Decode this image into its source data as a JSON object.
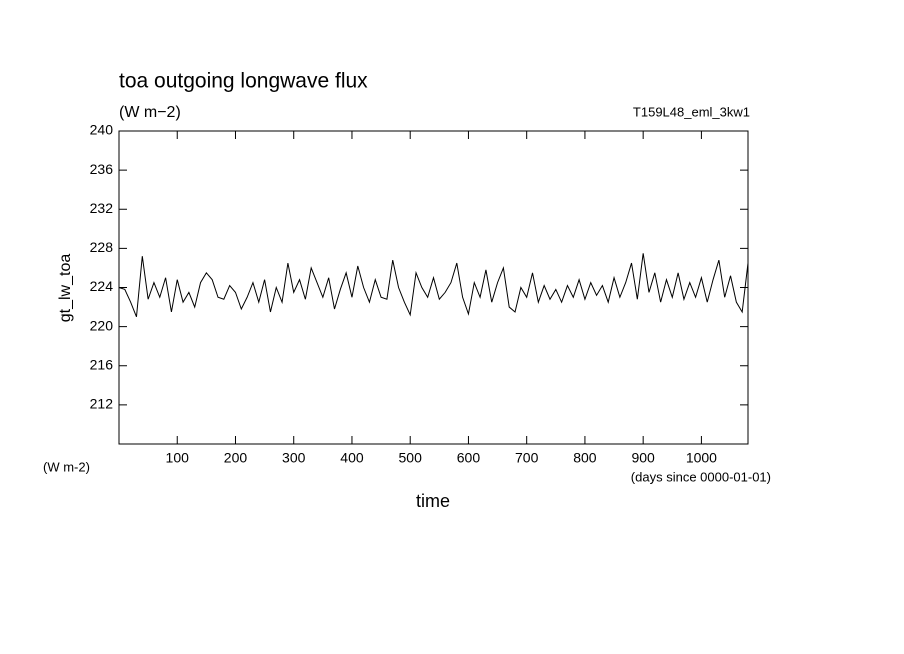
{
  "chart_data": {
    "type": "line",
    "title": "toa outgoing longwave flux",
    "subtitle": "(W m−2)",
    "experiment": "T159L48_eml_3kw1",
    "ylabel": "gt_lw_toa",
    "yunit": "(W m-2)",
    "xlabel": "time",
    "xunit": "(days since 0000-01-01)",
    "x": [
      0,
      10,
      20,
      30,
      40,
      50,
      60,
      70,
      80,
      90,
      100,
      110,
      120,
      130,
      140,
      150,
      160,
      170,
      180,
      190,
      200,
      210,
      220,
      230,
      240,
      250,
      260,
      270,
      280,
      290,
      300,
      310,
      320,
      330,
      340,
      350,
      360,
      370,
      380,
      390,
      400,
      410,
      420,
      430,
      440,
      450,
      460,
      470,
      480,
      490,
      500,
      510,
      520,
      530,
      540,
      550,
      560,
      570,
      580,
      590,
      600,
      610,
      620,
      630,
      640,
      650,
      660,
      670,
      680,
      690,
      700,
      710,
      720,
      730,
      740,
      750,
      760,
      770,
      780,
      790,
      800,
      810,
      820,
      830,
      840,
      850,
      860,
      870,
      880,
      890,
      900,
      910,
      920,
      930,
      940,
      950,
      960,
      970,
      980,
      990,
      1000,
      1010,
      1020,
      1030,
      1040,
      1050,
      1060,
      1070,
      1080
    ],
    "series": [
      {
        "name": "gt_lw_toa",
        "color": "#000000",
        "values": [
          224,
          223.8,
          222.5,
          221,
          227.2,
          222.8,
          224.5,
          223,
          225,
          221.5,
          224.8,
          222.5,
          223.5,
          222,
          224.5,
          225.5,
          224.8,
          223,
          222.8,
          224.2,
          223.5,
          221.8,
          223,
          224.5,
          222.5,
          224.8,
          221.5,
          224,
          222.5,
          226.5,
          223.5,
          224.8,
          222.8,
          226,
          224.5,
          223,
          225,
          221.8,
          223.8,
          225.5,
          223,
          226.2,
          224,
          222.5,
          224.8,
          223,
          222.8,
          226.8,
          224,
          222.5,
          221.2,
          225.5,
          224,
          223,
          225,
          222.8,
          223.5,
          224.5,
          226.5,
          223,
          221.3,
          224.5,
          223,
          225.8,
          222.5,
          224.5,
          226,
          222,
          221.5,
          224,
          223,
          225.5,
          222.5,
          224.2,
          222.8,
          223.8,
          222.5,
          224.2,
          223,
          224.8,
          222.8,
          224.5,
          223.2,
          224.2,
          222.5,
          225,
          223,
          224.5,
          226.5,
          222.8,
          227.5,
          223.5,
          225.5,
          222.5,
          224.8,
          223,
          225.5,
          222.8,
          224.5,
          223,
          225,
          222.5,
          224.8,
          226.8,
          223,
          225.2,
          222.5,
          221.5,
          226.5
        ]
      }
    ],
    "xlim": [
      0,
      1080
    ],
    "ylim": [
      208,
      240
    ],
    "xticks": [
      100,
      200,
      300,
      400,
      500,
      600,
      700,
      800,
      900,
      1000
    ],
    "yticks": [
      212,
      216,
      220,
      224,
      228,
      232,
      236,
      240
    ]
  }
}
